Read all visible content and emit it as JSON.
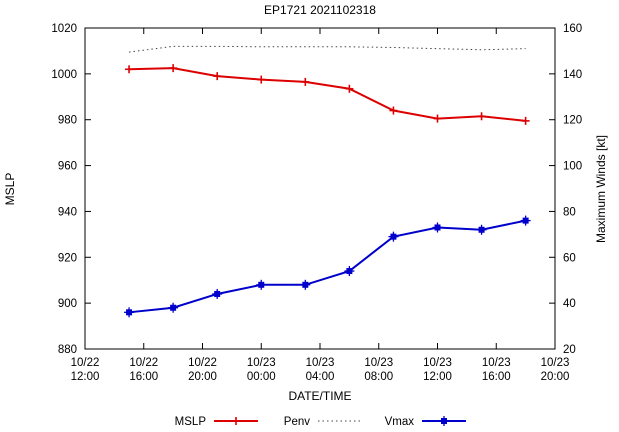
{
  "chart_data": {
    "type": "line",
    "title": "EP1721 2021102318",
    "xlabel": "DATE/TIME",
    "ylabel_left": "MSLP",
    "ylabel_right": "Maximum Winds [kt]",
    "x_range_hours": [
      0,
      32
    ],
    "x_tick_hours": [
      0,
      4,
      8,
      12,
      16,
      20,
      24,
      28,
      32
    ],
    "x_tick_labels": [
      [
        "10/22",
        "12:00"
      ],
      [
        "10/22",
        "16:00"
      ],
      [
        "10/22",
        "20:00"
      ],
      [
        "10/23",
        "00:00"
      ],
      [
        "10/23",
        "04:00"
      ],
      [
        "10/23",
        "08:00"
      ],
      [
        "10/23",
        "12:00"
      ],
      [
        "10/23",
        "16:00"
      ],
      [
        "10/23",
        "20:00"
      ]
    ],
    "ylim_left": [
      880,
      1020
    ],
    "yticks_left": [
      880,
      900,
      920,
      940,
      960,
      980,
      1000,
      1020
    ],
    "ylim_right": [
      20,
      160
    ],
    "yticks_right": [
      20,
      40,
      60,
      80,
      100,
      120,
      140,
      160
    ],
    "grid": false,
    "legend_position": "bottom-center",
    "series": [
      {
        "name": "MSLP",
        "axis": "left",
        "color": "#dd0000",
        "style": "solid",
        "marker": "plus",
        "x_hours": [
          3,
          6,
          9,
          12,
          15,
          18,
          21,
          24,
          27,
          30
        ],
        "values": [
          1002,
          1002.5,
          999,
          997.5,
          996.5,
          993.5,
          984,
          980.5,
          981.5,
          979.5
        ]
      },
      {
        "name": "Penv",
        "axis": "left",
        "color": "#444444",
        "style": "dotted",
        "marker": "none",
        "x_hours": [
          3,
          6,
          9,
          12,
          15,
          18,
          21,
          24,
          27,
          30
        ],
        "values": [
          1009.5,
          1012,
          1012,
          1011.8,
          1011.8,
          1011.8,
          1011.5,
          1011,
          1010.5,
          1011
        ]
      },
      {
        "name": "Vmax",
        "axis": "right",
        "color": "#0000cc",
        "style": "solid",
        "marker": "square",
        "x_hours": [
          3,
          6,
          9,
          12,
          15,
          18,
          21,
          24,
          27,
          30
        ],
        "values": [
          36,
          38,
          44,
          48,
          48,
          54,
          69,
          73,
          72,
          76
        ]
      }
    ],
    "legend": [
      {
        "label": "MSLP",
        "color": "#dd0000",
        "style": "solid",
        "marker": "plus"
      },
      {
        "label": "Penv",
        "color": "#444444",
        "style": "dotted",
        "marker": "none"
      },
      {
        "label": "Vmax",
        "color": "#0000cc",
        "style": "solid",
        "marker": "square"
      }
    ]
  }
}
